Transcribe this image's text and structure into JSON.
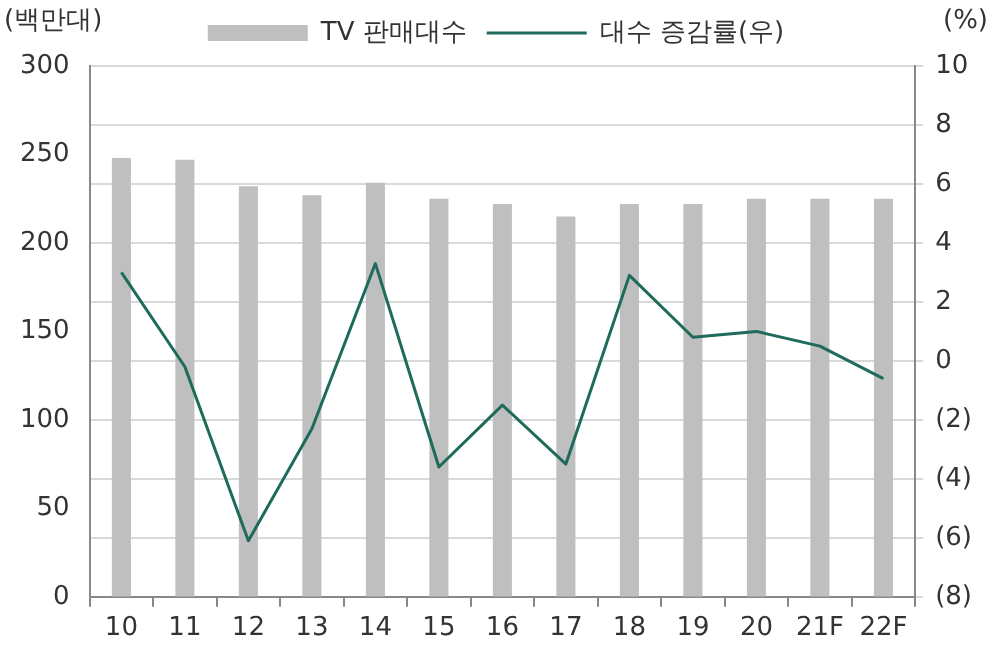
{
  "chart_data": {
    "type": "bar",
    "ylabel": "(백만대)",
    "y2label": "(%)",
    "categories": [
      "10",
      "11",
      "12",
      "13",
      "14",
      "15",
      "16",
      "17",
      "18",
      "19",
      "20",
      "21F",
      "22F"
    ],
    "series": [
      {
        "name": "TV 판매대수",
        "color": "#bfbfbf",
        "values": [
          248,
          247,
          232,
          227,
          234,
          225,
          222,
          215,
          222,
          222,
          225,
          225,
          225
        ]
      },
      {
        "name": "대수 증감률(우)",
        "type": "line",
        "axis": "y2",
        "color": "#1e6b5c",
        "values": [
          3.0,
          -0.2,
          -6.1,
          -2.3,
          3.3,
          -3.6,
          -1.5,
          -3.5,
          2.9,
          0.8,
          1.0,
          0.5,
          -0.6
        ]
      }
    ],
    "ylim": [
      0,
      300
    ],
    "yticks": [
      0,
      50,
      100,
      150,
      200,
      250,
      300
    ],
    "y2lim": [
      -8,
      10
    ],
    "y2ticks": [
      {
        "value": -8,
        "label": "(8)"
      },
      {
        "value": -6,
        "label": "(6)"
      },
      {
        "value": -4,
        "label": "(4)"
      },
      {
        "value": -2,
        "label": "(2)"
      },
      0,
      2,
      4,
      6,
      8,
      10
    ],
    "grid": "y",
    "legend": "top",
    "line_style": "solid"
  }
}
